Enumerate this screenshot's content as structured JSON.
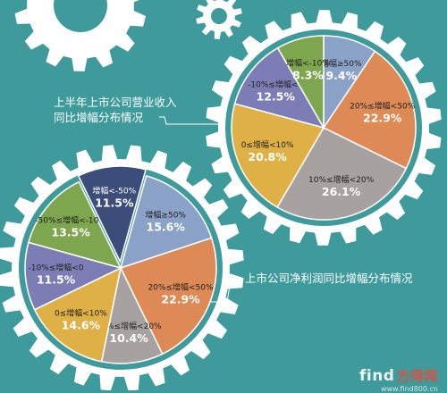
{
  "chart_data": [
    {
      "type": "pie",
      "title": "上半年上市公司营业收入\n同比增幅分布情况",
      "series": [
        {
          "label": "增幅≥50%",
          "value": 9.4,
          "value_label": "9.4%",
          "color": "#8ba2c8"
        },
        {
          "label": "20%≤增幅<50%",
          "value": 22.9,
          "value_label": "22.9%",
          "color": "#dd8a56"
        },
        {
          "label": "10%≤增幅<20%",
          "value": 26.1,
          "value_label": "26.1%",
          "color": "#a7a1a0"
        },
        {
          "label": "0≤增幅<10%",
          "value": 20.8,
          "value_label": "20.8%",
          "color": "#dfb045"
        },
        {
          "label": "-10%≤增幅<0",
          "value": 12.5,
          "value_label": "12.5%",
          "color": "#7c7db4"
        },
        {
          "label": "增幅<-10%",
          "value": 8.3,
          "value_label": "8.3%",
          "color": "#7ea64e"
        }
      ]
    },
    {
      "type": "pie",
      "title": "上市公司净利润同比增幅分布情况",
      "series": [
        {
          "label": "增幅≥50%",
          "value": 15.6,
          "value_label": "15.6%",
          "color": "#8ba2c8"
        },
        {
          "label": "20%≤增幅<50%",
          "value": 22.9,
          "value_label": "22.9%",
          "color": "#dd8a56"
        },
        {
          "label": "10%≤增幅<20%",
          "value": 10.4,
          "value_label": "10.4%",
          "color": "#a7a1a0"
        },
        {
          "label": "0≤增幅<10%",
          "value": 14.6,
          "value_label": "14.6%",
          "color": "#dfb045"
        },
        {
          "label": "-10%≤增幅<0",
          "value": 11.5,
          "value_label": "11.5%",
          "color": "#7c7db4"
        },
        {
          "label": "-50%≤增幅<-10%",
          "value": 13.5,
          "value_label": "13.5%",
          "color": "#7ea64e"
        },
        {
          "label": "增幅<-50%",
          "value": 11.5,
          "value_label": "11.5%",
          "color": "#3b4d78"
        }
      ]
    }
  ],
  "watermark": {
    "brand": "find",
    "brand_cn": "方得网",
    "url": "www.find800.cn"
  }
}
